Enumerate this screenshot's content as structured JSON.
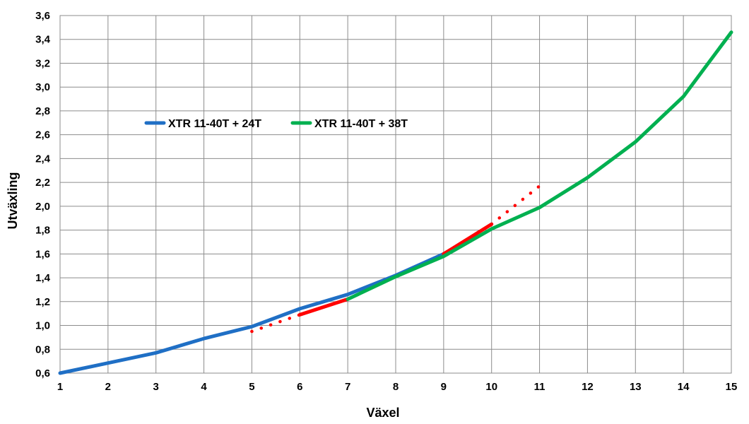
{
  "chart_data": {
    "type": "line",
    "xlabel": "Växel",
    "ylabel": "Utväxling",
    "xlim": [
      1,
      15
    ],
    "ylim": [
      0.6,
      3.6
    ],
    "x_ticks": [
      "1",
      "2",
      "3",
      "4",
      "5",
      "6",
      "7",
      "8",
      "9",
      "10",
      "11",
      "12",
      "13",
      "14",
      "15"
    ],
    "y_ticks": [
      "0,6",
      "0,8",
      "1,0",
      "1,2",
      "1,4",
      "1,6",
      "1,8",
      "2,0",
      "2,2",
      "2,4",
      "2,6",
      "2,8",
      "3,0",
      "3,2",
      "3,4",
      "3,6"
    ],
    "grid": true,
    "legend_position": "upper-left",
    "series": [
      {
        "name": "XTR 11-40T + 24T",
        "color": "#1f6fc5",
        "style": "solid",
        "points": [
          [
            1,
            0.6
          ],
          [
            2,
            0.685
          ],
          [
            3,
            0.77
          ],
          [
            4,
            0.89
          ],
          [
            5,
            0.99
          ],
          [
            6,
            1.14
          ],
          [
            7,
            1.26
          ],
          [
            8,
            1.42
          ],
          [
            9,
            1.6
          ]
        ]
      },
      {
        "name": "XTR 11-40T + 38T",
        "color": "#00b050",
        "style": "solid",
        "points": [
          [
            7,
            1.22
          ],
          [
            8,
            1.41
          ],
          [
            9,
            1.58
          ],
          [
            10,
            1.81
          ],
          [
            11,
            1.99
          ],
          [
            12,
            2.24
          ],
          [
            13,
            2.54
          ],
          [
            14,
            2.92
          ],
          [
            15,
            3.46
          ]
        ]
      },
      {
        "color": "#ff0000",
        "style": "dotted",
        "points": [
          [
            5,
            0.95
          ],
          [
            6,
            1.09
          ]
        ]
      },
      {
        "color": "#ff0000",
        "style": "solid",
        "points": [
          [
            6,
            1.09
          ],
          [
            7,
            1.22
          ]
        ]
      },
      {
        "color": "#ff0000",
        "style": "solid",
        "points": [
          [
            9,
            1.6
          ],
          [
            10,
            1.85
          ]
        ]
      },
      {
        "color": "#ff0000",
        "style": "dotted",
        "points": [
          [
            10,
            1.85
          ],
          [
            11,
            2.17
          ]
        ]
      }
    ]
  }
}
